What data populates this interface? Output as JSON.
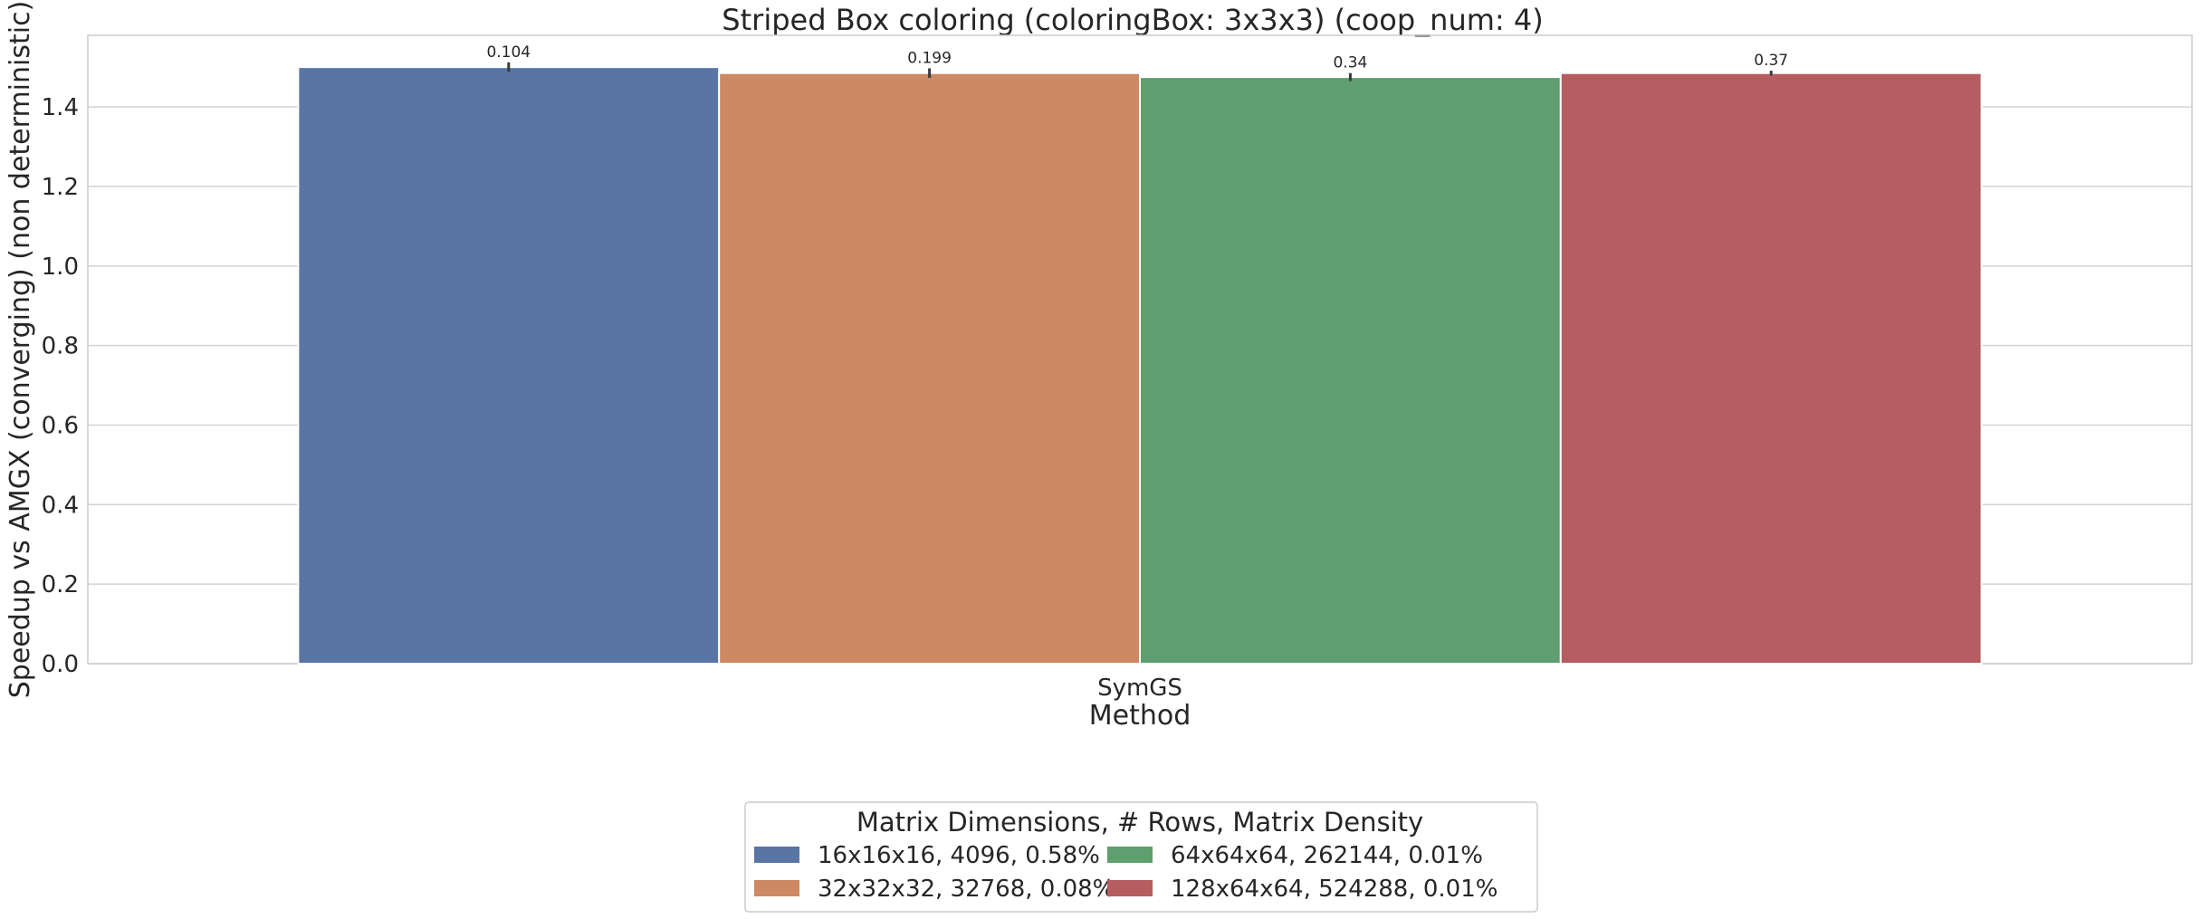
{
  "chart_data": {
    "type": "bar",
    "title": "Striped Box coloring (coloringBox: 3x3x3) (coop_num: 4)",
    "xlabel": "Method",
    "ylabel": "Speedup vs AMGX (converging) (non deterministic)",
    "categories": [
      "SymGS"
    ],
    "ylim": [
      0,
      1.58
    ],
    "yticks": [
      0.0,
      0.2,
      0.4,
      0.6,
      0.8,
      1.0,
      1.2,
      1.4
    ],
    "ytick_labels": [
      "0.0",
      "0.2",
      "0.4",
      "0.6",
      "0.8",
      "1.0",
      "1.2",
      "1.4"
    ],
    "grid": true,
    "legend": {
      "title": "Matrix Dimensions, # Rows, Matrix Density",
      "placement": "bottom-center",
      "columns": 2
    },
    "series": [
      {
        "name": "16x16x16, 4096, 0.58%",
        "values": [
          1.5
        ],
        "error": [
          0.012
        ],
        "data_label": "0.104",
        "color": "#5875a4"
      },
      {
        "name": "32x32x32, 32768, 0.08%",
        "values": [
          1.485
        ],
        "error": [
          0.012
        ],
        "data_label": "0.199",
        "color": "#cc8963"
      },
      {
        "name": "64x64x64, 262144, 0.01%",
        "values": [
          1.475
        ],
        "error": [
          0.01
        ],
        "data_label": "0.34",
        "color": "#5f9e6e"
      },
      {
        "name": "128x64x64, 524288, 0.01%",
        "values": [
          1.485
        ],
        "error": [
          0.006
        ],
        "data_label": "0.37",
        "color": "#b55d60"
      }
    ]
  }
}
